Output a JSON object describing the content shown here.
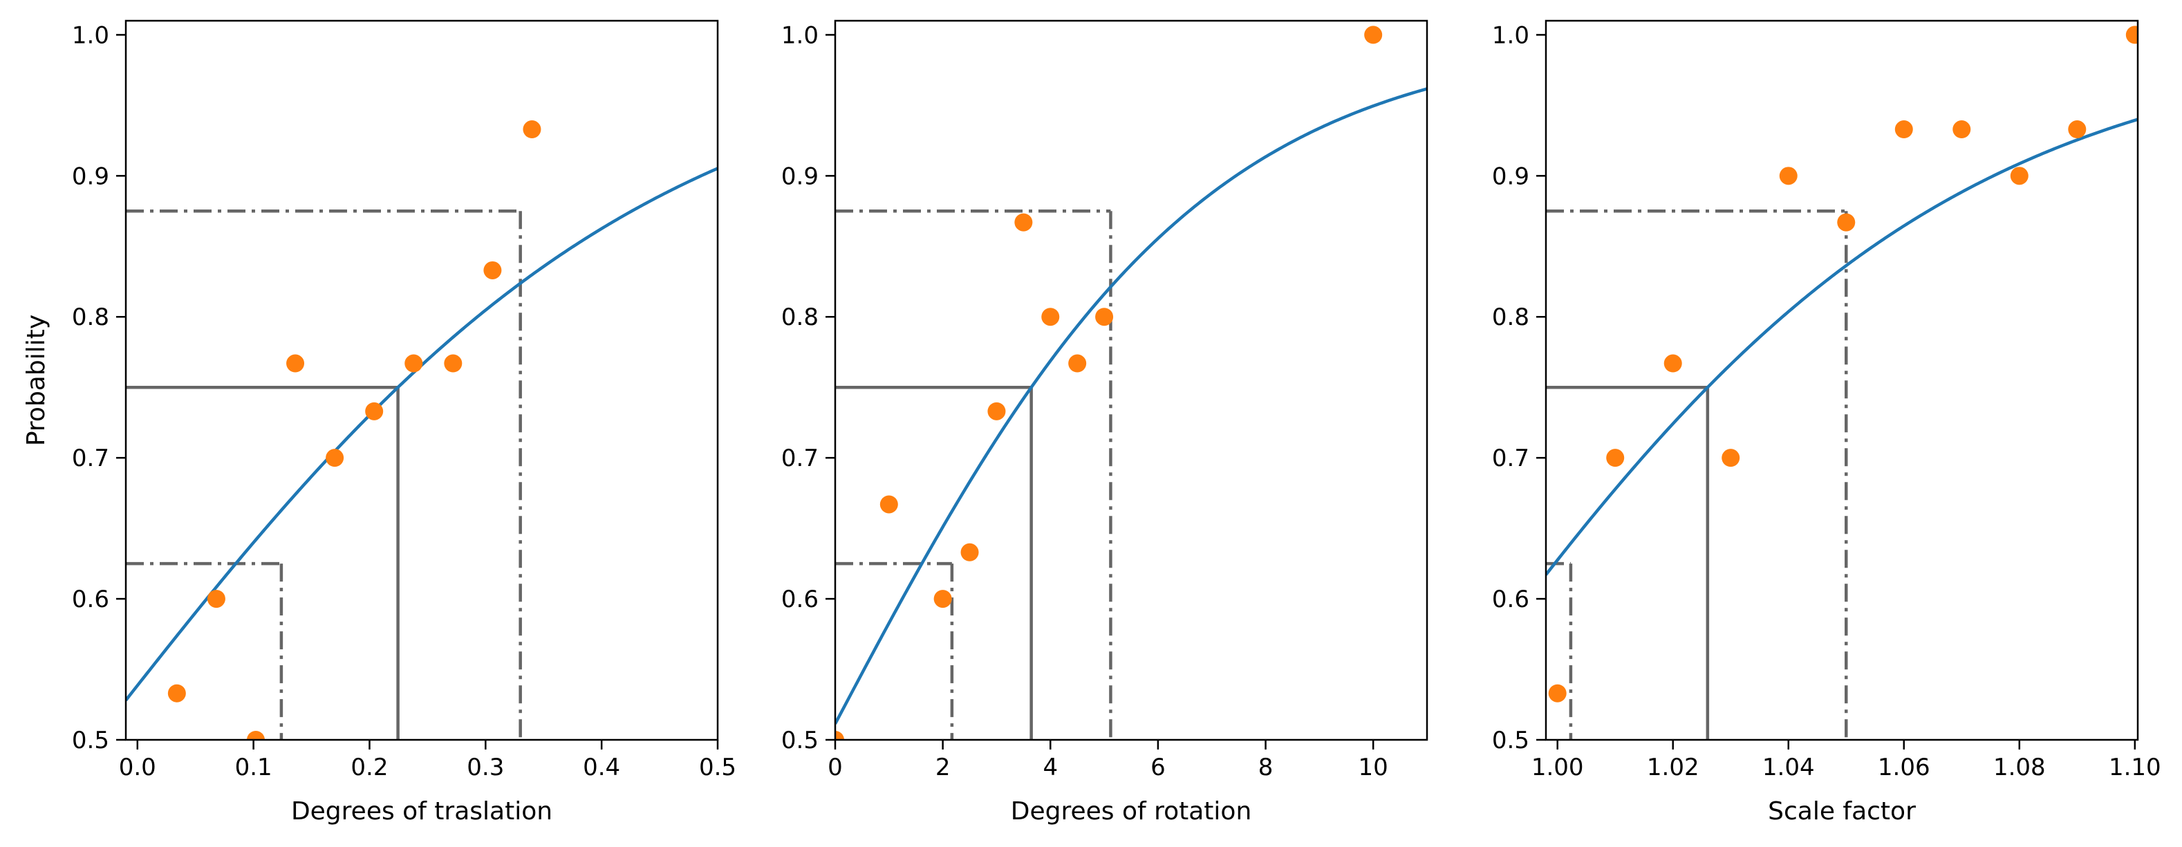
{
  "chart_data": [
    {
      "type": "scatter",
      "title": "",
      "xlabel": "Degrees of traslation",
      "ylabel": "Probability",
      "xlim": [
        -0.01,
        0.5
      ],
      "ylim": [
        0.5,
        1.01
      ],
      "xticks": [
        0.0,
        0.1,
        0.2,
        0.3,
        0.4,
        0.5
      ],
      "xtick_labels": [
        "0.0",
        "0.1",
        "0.2",
        "0.3",
        "0.4",
        "0.5"
      ],
      "yticks": [
        0.5,
        0.6,
        0.7,
        0.8,
        0.9,
        1.0
      ],
      "ytick_labels": [
        "0.5",
        "0.6",
        "0.7",
        "0.8",
        "0.9",
        "1.0"
      ],
      "grid": false,
      "colors": {
        "points": "#ff7f0e",
        "curve": "#1f77b4",
        "guides": "#666666"
      },
      "points": {
        "x": [
          0.034,
          0.068,
          0.102,
          0.136,
          0.17,
          0.204,
          0.238,
          0.272,
          0.306,
          0.34
        ],
        "y": [
          0.533,
          0.6,
          0.5,
          0.767,
          0.7,
          0.733,
          0.767,
          0.767,
          0.833,
          0.933
        ]
      },
      "curve": {
        "kind": "logistic",
        "x_at_half": -0.0367,
        "x_at_three_quarters": 0.2245
      },
      "guides": [
        {
          "p": 0.625,
          "x": 0.124,
          "style": "dashdot"
        },
        {
          "p": 0.75,
          "x": 0.2245,
          "style": "solid"
        },
        {
          "p": 0.875,
          "x": 0.33,
          "style": "dashdot"
        }
      ]
    },
    {
      "type": "scatter",
      "title": "",
      "xlabel": "Degrees of rotation",
      "ylabel": "",
      "xlim": [
        0,
        11
      ],
      "ylim": [
        0.5,
        1.01
      ],
      "xticks": [
        0,
        2,
        4,
        6,
        8,
        10
      ],
      "xtick_labels": [
        "0",
        "2",
        "4",
        "6",
        "8",
        "10"
      ],
      "yticks": [
        0.5,
        0.6,
        0.7,
        0.8,
        0.9,
        1.0
      ],
      "ytick_labels": [
        "0.5",
        "0.6",
        "0.7",
        "0.8",
        "0.9",
        "1.0"
      ],
      "grid": false,
      "colors": {
        "points": "#ff7f0e",
        "curve": "#1f77b4",
        "guides": "#666666"
      },
      "points": {
        "x": [
          0.0,
          1.0,
          2.0,
          2.5,
          3.0,
          3.5,
          4.0,
          4.5,
          5.0,
          10.0
        ],
        "y": [
          0.5,
          0.667,
          0.6,
          0.633,
          0.733,
          0.867,
          0.8,
          0.767,
          0.8,
          1.0
        ]
      },
      "curve": {
        "kind": "logistic",
        "x_at_half": -0.157,
        "x_at_three_quarters": 3.645
      },
      "guides": [
        {
          "p": 0.625,
          "x": 2.17,
          "style": "dashdot"
        },
        {
          "p": 0.75,
          "x": 3.645,
          "style": "solid"
        },
        {
          "p": 0.875,
          "x": 5.12,
          "style": "dashdot"
        }
      ]
    },
    {
      "type": "scatter",
      "title": "",
      "xlabel": "Scale factor",
      "ylabel": "",
      "xlim": [
        0.998,
        1.1005
      ],
      "ylim": [
        0.5,
        1.01
      ],
      "xticks": [
        1.0,
        1.02,
        1.04,
        1.06,
        1.08,
        1.1
      ],
      "xtick_labels": [
        "1.00",
        "1.02",
        "1.04",
        "1.06",
        "1.08",
        "1.10"
      ],
      "yticks": [
        0.5,
        0.6,
        0.7,
        0.8,
        0.9,
        1.0
      ],
      "ytick_labels": [
        "0.5",
        "0.6",
        "0.7",
        "0.8",
        "0.9",
        "1.0"
      ],
      "grid": false,
      "colors": {
        "points": "#ff7f0e",
        "curve": "#1f77b4",
        "guides": "#666666"
      },
      "points": {
        "x": [
          1.0,
          1.01,
          1.02,
          1.03,
          1.04,
          1.05,
          1.06,
          1.07,
          1.08,
          1.09,
          1.1
        ],
        "y": [
          0.533,
          0.7,
          0.767,
          0.7,
          0.9,
          0.867,
          0.933,
          0.933,
          0.9,
          0.933,
          1.0
        ]
      },
      "curve": {
        "kind": "logistic",
        "x_at_half": 0.9765,
        "x_at_three_quarters": 1.026
      },
      "guides": [
        {
          "p": 0.625,
          "x": 1.0023,
          "style": "dashdot"
        },
        {
          "p": 0.75,
          "x": 1.026,
          "style": "solid"
        },
        {
          "p": 0.875,
          "x": 1.05,
          "style": "dashdot"
        }
      ]
    }
  ]
}
